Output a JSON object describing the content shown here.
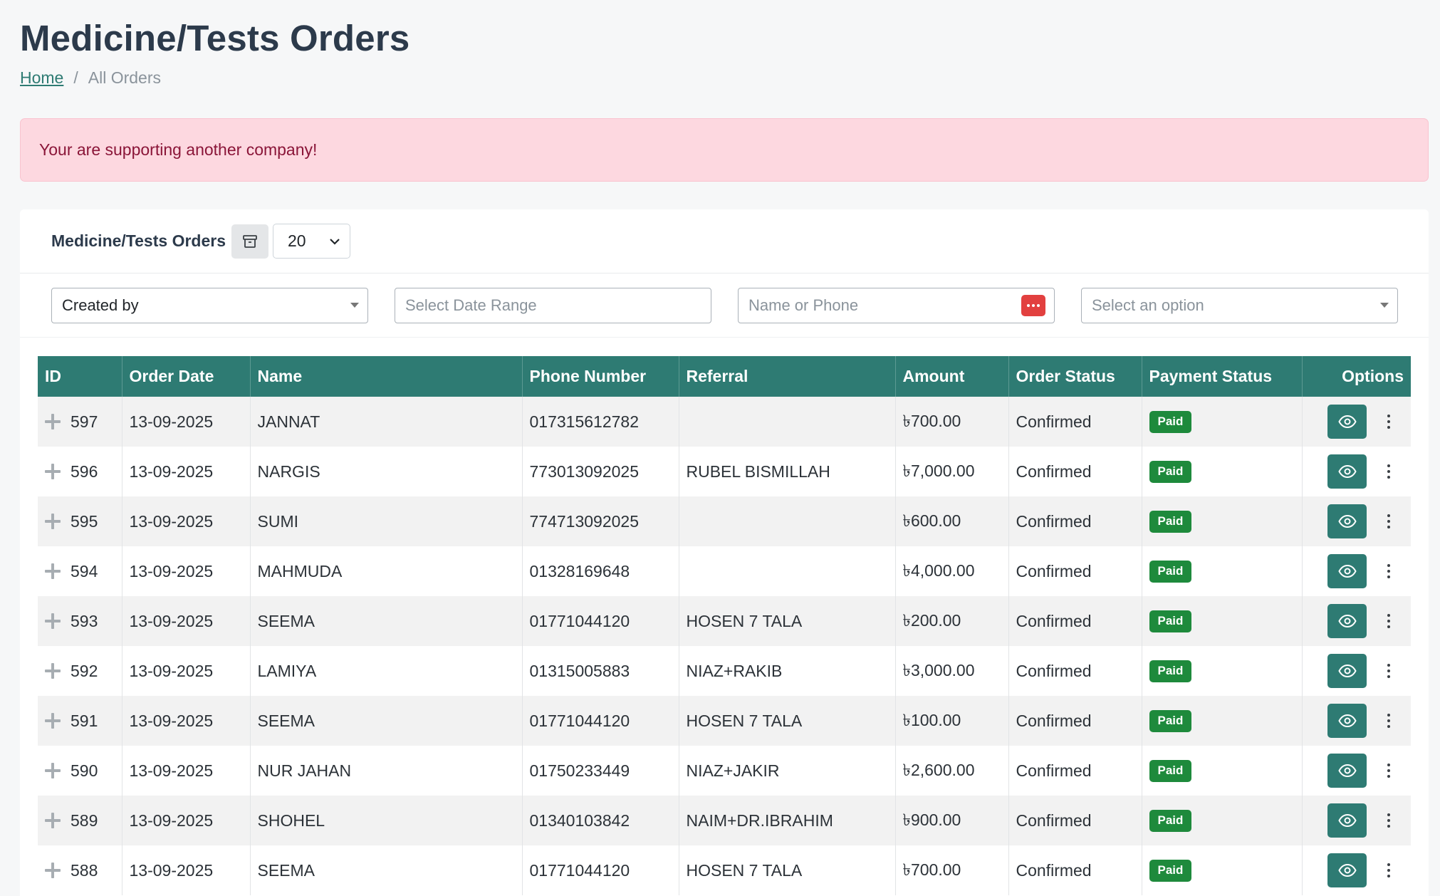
{
  "page": {
    "title": "Medicine/Tests Orders",
    "breadcrumb": {
      "home": "Home",
      "separator": "/",
      "current": "All Orders"
    },
    "alert": "Your are supporting another company!"
  },
  "card": {
    "title": "Medicine/Tests Orders",
    "page_size": "20"
  },
  "filters": {
    "created_by": "Created by",
    "date_range_placeholder": "Select Date Range",
    "search_placeholder": "Name or Phone",
    "option_placeholder": "Select an option"
  },
  "table": {
    "columns": [
      "ID",
      "Order Date",
      "Name",
      "Phone Number",
      "Referral",
      "Amount",
      "Order Status",
      "Payment Status",
      "Options"
    ],
    "rows": [
      {
        "id": "597",
        "date": "13-09-2025",
        "name": "JANNAT",
        "phone": "017315612782",
        "referral": "",
        "amount": "৳700.00",
        "status": "Confirmed",
        "payment": "Paid"
      },
      {
        "id": "596",
        "date": "13-09-2025",
        "name": "NARGIS",
        "phone": "773013092025",
        "referral": "RUBEL BISMILLAH",
        "amount": "৳7,000.00",
        "status": "Confirmed",
        "payment": "Paid"
      },
      {
        "id": "595",
        "date": "13-09-2025",
        "name": "SUMI",
        "phone": "774713092025",
        "referral": "",
        "amount": "৳600.00",
        "status": "Confirmed",
        "payment": "Paid"
      },
      {
        "id": "594",
        "date": "13-09-2025",
        "name": "MAHMUDA",
        "phone": "01328169648",
        "referral": "",
        "amount": "৳4,000.00",
        "status": "Confirmed",
        "payment": "Paid"
      },
      {
        "id": "593",
        "date": "13-09-2025",
        "name": "SEEMA",
        "phone": "01771044120",
        "referral": "HOSEN 7 TALA",
        "amount": "৳200.00",
        "status": "Confirmed",
        "payment": "Paid"
      },
      {
        "id": "592",
        "date": "13-09-2025",
        "name": "LAMIYA",
        "phone": "01315005883",
        "referral": "NIAZ+RAKIB",
        "amount": "৳3,000.00",
        "status": "Confirmed",
        "payment": "Paid"
      },
      {
        "id": "591",
        "date": "13-09-2025",
        "name": "SEEMA",
        "phone": "01771044120",
        "referral": "HOSEN 7 TALA",
        "amount": "৳100.00",
        "status": "Confirmed",
        "payment": "Paid"
      },
      {
        "id": "590",
        "date": "13-09-2025",
        "name": "NUR JAHAN",
        "phone": "01750233449",
        "referral": "NIAZ+JAKIR",
        "amount": "৳2,600.00",
        "status": "Confirmed",
        "payment": "Paid"
      },
      {
        "id": "589",
        "date": "13-09-2025",
        "name": "SHOHEL",
        "phone": "01340103842",
        "referral": "NAIM+DR.IBRAHIM",
        "amount": "৳900.00",
        "status": "Confirmed",
        "payment": "Paid"
      },
      {
        "id": "588",
        "date": "13-09-2025",
        "name": "SEEMA",
        "phone": "01771044120",
        "referral": "HOSEN 7 TALA",
        "amount": "৳700.00",
        "status": "Confirmed",
        "payment": "Paid"
      }
    ]
  },
  "colors": {
    "primary": "#2e7b73",
    "paid": "#1e8a3c",
    "alert_bg": "#fdd8e0",
    "alert_text": "#8a1538"
  },
  "icons": {
    "archive": "archive-icon",
    "view": "eye-icon",
    "more": "kebab-icon",
    "expand": "plus-icon",
    "search_badge": "dots-icon"
  }
}
